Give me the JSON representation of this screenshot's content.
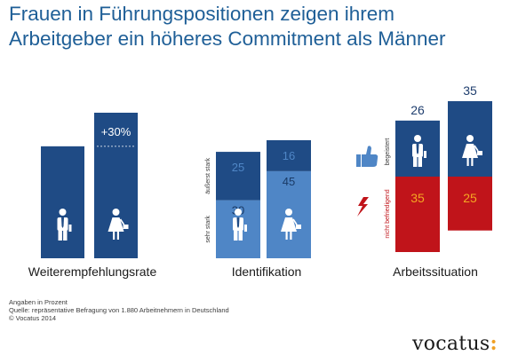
{
  "title_lines": [
    "Frauen in Führungspositionen zeigen ihrem",
    "Arbeitgeber ein höheres Commitment als Männer"
  ],
  "colors": {
    "dark_blue": "#1f4b85",
    "light_blue": "#4f86c6",
    "red": "#c0141a",
    "title": "#1f5f97",
    "red_label": "#f5a623"
  },
  "chart_data": [
    {
      "type": "bar",
      "title": "",
      "xlabel": "Weiterempfehlungsrate",
      "categories": [
        "Männer",
        "Frauen"
      ],
      "icons": [
        "man-icon",
        "woman-icon"
      ],
      "values": [
        100,
        130
      ],
      "annotation": "+30%"
    },
    {
      "type": "bar",
      "stacked": true,
      "xlabel": "Identifikation",
      "categories": [
        "Männer",
        "Frauen"
      ],
      "icons": [
        "man-icon",
        "woman-icon"
      ],
      "series": [
        {
          "name": "sehr stark",
          "values": [
            30,
            45
          ]
        },
        {
          "name": "äußerst stark",
          "values": [
            25,
            16
          ]
        }
      ]
    },
    {
      "type": "bar",
      "diverging": true,
      "xlabel": "Arbeitssituation",
      "categories": [
        "Männer",
        "Frauen"
      ],
      "icons": [
        "man-icon",
        "woman-icon"
      ],
      "series": [
        {
          "name": "begeistert",
          "values": [
            26,
            35
          ],
          "icon": "thumbs-up-icon"
        },
        {
          "name": "nicht befriedigend",
          "values": [
            35,
            25
          ],
          "icon": "lightning-icon"
        }
      ]
    }
  ],
  "footnotes": [
    "Angaben in Prozent",
    "Quelle: repräsentative Befragung von 1.880 Arbeitnehmern in Deutschland",
    "© Vocatus 2014"
  ],
  "logo": {
    "text": "vocatus",
    "dots": ":"
  }
}
